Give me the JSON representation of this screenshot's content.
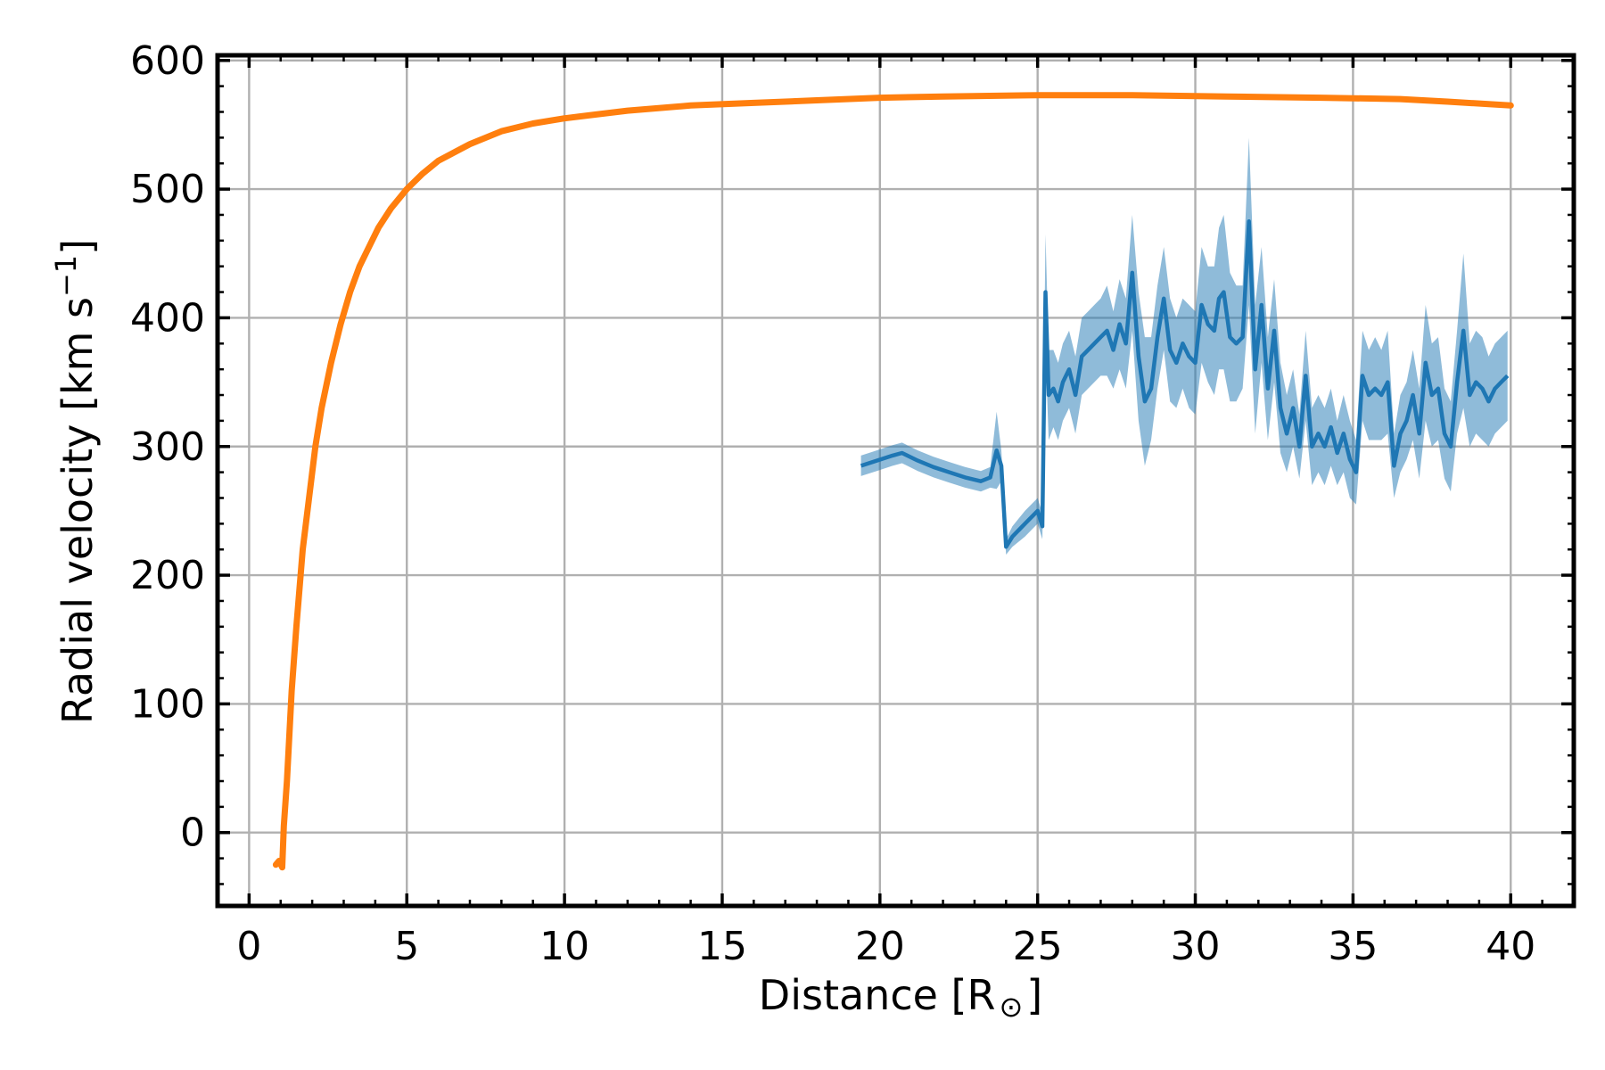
{
  "chart_data": {
    "type": "line",
    "title": "",
    "xlabel": "Distance [R",
    "xlabel_symbol": "⊙",
    "xlabel_close": "]",
    "ylabel": "Radial velocity [km s",
    "ylabel_exp": "−1",
    "ylabel_close": "]",
    "xlim": [
      -1,
      42
    ],
    "ylim": [
      -57,
      604
    ],
    "xticks": [
      0,
      5,
      10,
      15,
      20,
      25,
      30,
      35,
      40
    ],
    "yticks": [
      0,
      100,
      200,
      300,
      400,
      500,
      600
    ],
    "grid": true,
    "colors": {
      "model": "#ff7f0e",
      "observed": "#1f77b4",
      "band": "#1f77b4"
    },
    "series": [
      {
        "x": [
          0.85,
          0.95,
          1.05,
          1.1,
          1.2,
          1.35,
          1.5,
          1.7,
          1.9,
          2.1,
          2.3,
          2.6,
          2.9,
          3.2,
          3.5,
          3.8,
          4.1,
          4.5,
          5.0,
          5.5,
          6.0,
          7.0,
          8.0,
          9.0,
          10.0,
          11.0,
          12.0,
          14.0,
          16.0,
          18.0,
          20.0,
          22.0,
          25.0,
          28.0,
          31.0,
          34.0,
          36.5,
          38.0,
          40.0
        ],
        "values": [
          -25,
          -22,
          -27,
          5,
          40,
          110,
          160,
          220,
          260,
          300,
          330,
          365,
          395,
          420,
          440,
          455,
          470,
          485,
          500,
          512,
          522,
          535,
          545,
          551,
          555,
          558,
          561,
          565,
          567,
          569,
          571,
          572,
          573,
          573,
          572,
          571,
          570,
          568,
          565
        ]
      },
      {
        "x": [
          19.4,
          19.9,
          20.4,
          20.7,
          21.2,
          21.7,
          22.2,
          22.7,
          23.2,
          23.5,
          23.7,
          23.85,
          24.0,
          24.2,
          24.6,
          25.0,
          25.15,
          25.25,
          25.35,
          25.5,
          25.65,
          25.8,
          26.0,
          26.2,
          26.4,
          26.6,
          26.8,
          27.0,
          27.2,
          27.4,
          27.6,
          27.8,
          28.0,
          28.2,
          28.4,
          28.6,
          28.8,
          29.0,
          29.2,
          29.4,
          29.6,
          29.8,
          30.0,
          30.2,
          30.4,
          30.6,
          30.75,
          30.9,
          31.1,
          31.3,
          31.5,
          31.7,
          31.9,
          32.1,
          32.3,
          32.5,
          32.7,
          32.9,
          33.1,
          33.3,
          33.5,
          33.7,
          33.9,
          34.1,
          34.3,
          34.5,
          34.7,
          34.9,
          35.1,
          35.3,
          35.5,
          35.7,
          35.9,
          36.1,
          36.3,
          36.5,
          36.7,
          36.9,
          37.1,
          37.3,
          37.5,
          37.7,
          37.9,
          38.1,
          38.3,
          38.5,
          38.7,
          38.9,
          39.1,
          39.3,
          39.5,
          39.7,
          39.9
        ],
        "values": [
          285,
          289,
          293,
          295,
          289,
          284,
          280,
          276,
          273,
          276,
          297,
          285,
          222,
          230,
          240,
          250,
          238,
          420,
          340,
          345,
          335,
          350,
          360,
          340,
          370,
          375,
          380,
          385,
          390,
          375,
          395,
          380,
          435,
          370,
          335,
          345,
          385,
          415,
          375,
          365,
          380,
          370,
          365,
          410,
          395,
          390,
          415,
          420,
          385,
          380,
          385,
          475,
          360,
          410,
          345,
          390,
          330,
          310,
          330,
          300,
          355,
          300,
          310,
          300,
          315,
          295,
          310,
          290,
          280,
          355,
          340,
          345,
          340,
          350,
          285,
          310,
          320,
          340,
          310,
          365,
          340,
          345,
          310,
          300,
          350,
          390,
          340,
          350,
          345,
          335,
          345,
          350,
          355
        ],
        "band": [
          8,
          8,
          8,
          8,
          8,
          8,
          8,
          8,
          8,
          8,
          30,
          12,
          6,
          8,
          10,
          10,
          10,
          45,
          35,
          30,
          30,
          30,
          30,
          30,
          30,
          30,
          30,
          30,
          35,
          30,
          35,
          35,
          45,
          50,
          50,
          40,
          40,
          40,
          40,
          35,
          35,
          40,
          40,
          45,
          45,
          50,
          55,
          60,
          50,
          45,
          40,
          65,
          50,
          45,
          40,
          40,
          35,
          30,
          30,
          25,
          35,
          30,
          30,
          30,
          30,
          25,
          30,
          30,
          25,
          35,
          35,
          40,
          35,
          40,
          25,
          30,
          30,
          35,
          35,
          45,
          40,
          40,
          35,
          35,
          40,
          60,
          40,
          40,
          40,
          35,
          35,
          35,
          35
        ]
      }
    ]
  }
}
